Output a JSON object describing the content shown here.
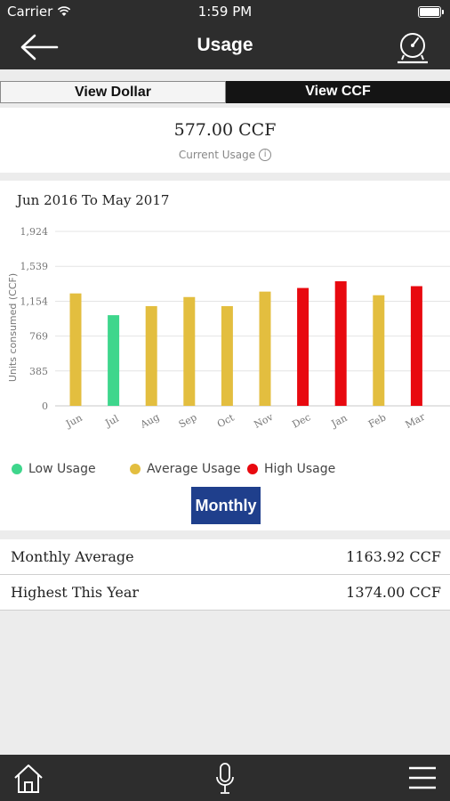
{
  "status_bar": {
    "carrier": "Carrier",
    "time": "1:59 PM"
  },
  "nav": {
    "title": "Usage",
    "back_icon": "back-arrow-icon",
    "meter_icon": "gauge-icon"
  },
  "toggle": {
    "dollar_label": "View Dollar",
    "ccf_label": "View CCF",
    "selected": "View CCF"
  },
  "current_usage": {
    "value": "577.00 CCF",
    "label": "Current Usage",
    "info_glyph": "i"
  },
  "chart_data": {
    "type": "bar",
    "title": "Jun 2016 To May 2017",
    "ylabel": "Units consumed (CCF)",
    "xlabel": "",
    "y_ticks": [
      "0",
      "385",
      "769",
      "1,154",
      "1,539",
      "1,924"
    ],
    "ylim": [
      0,
      1924
    ],
    "grid": true,
    "categories": [
      "Jun",
      "Jul",
      "Aug",
      "Sep",
      "Oct",
      "Nov",
      "Dec",
      "Jan",
      "Feb",
      "Mar"
    ],
    "values": [
      1240,
      1000,
      1100,
      1200,
      1100,
      1260,
      1300,
      1374,
      1220,
      1320
    ],
    "levels": [
      "average",
      "low",
      "average",
      "average",
      "average",
      "average",
      "high",
      "high",
      "average",
      "high"
    ],
    "level_colors": {
      "low": "#3ed68c",
      "average": "#e3be3f",
      "high": "#e8090f"
    },
    "legend": [
      {
        "label": "Low Usage",
        "level": "low"
      },
      {
        "label": "Average Usage",
        "level": "average"
      },
      {
        "label": "High Usage",
        "level": "high"
      }
    ]
  },
  "period_button": "Monthly",
  "stats": [
    {
      "label": "Monthly Average",
      "value": "1163.92 CCF"
    },
    {
      "label": "Highest This Year",
      "value": "1374.00 CCF"
    }
  ],
  "tab_bar": {
    "icons": [
      "home-icon",
      "microphone-icon",
      "menu-icon"
    ]
  }
}
